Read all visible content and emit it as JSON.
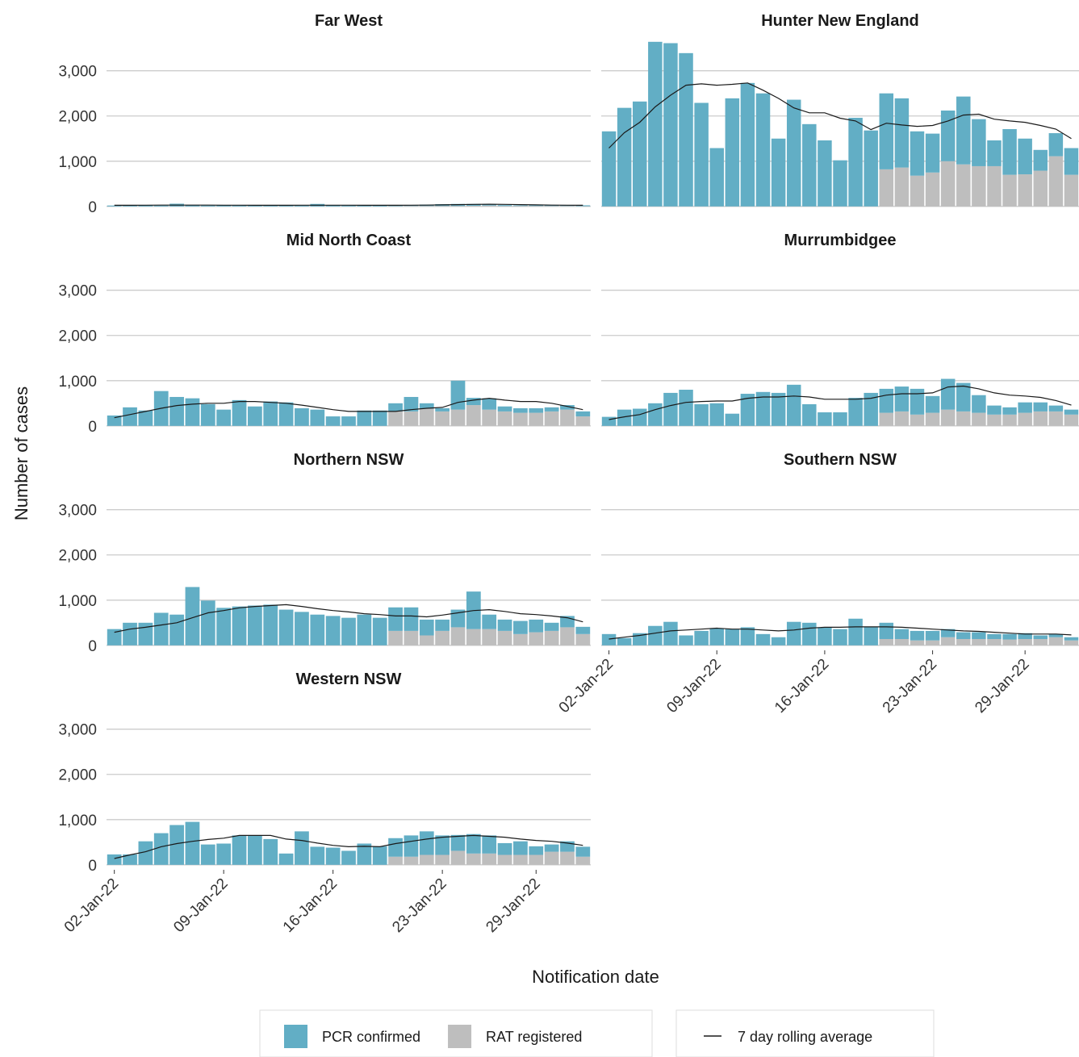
{
  "chart_data": {
    "type": "bar",
    "stacked": true,
    "y_label": "Number of cases",
    "x_label": "Notification date",
    "categories": [
      "02-Jan-22",
      null,
      null,
      null,
      null,
      null,
      null,
      "09-Jan-22",
      null,
      null,
      null,
      null,
      null,
      null,
      "16-Jan-22",
      null,
      null,
      null,
      null,
      null,
      null,
      "23-Jan-22",
      null,
      null,
      null,
      null,
      null,
      "29-Jan-22",
      null,
      null,
      null
    ],
    "ylim": [
      -110,
      3280
    ],
    "yticks": [
      0,
      {
        "value": 1000,
        "label": "1,000"
      },
      {
        "value": 2000,
        "label": "2,000"
      },
      {
        "value": 3000,
        "label": "3,000"
      }
    ],
    "grid": true,
    "series": [
      {
        "name": "PCR confirmed",
        "color": "#62aec5"
      },
      {
        "name": "RAT registered",
        "color": "#bebebe"
      },
      {
        "name": "7 day rolling average",
        "color": "#1a1a1a",
        "type": "line"
      }
    ],
    "panels": [
      {
        "title": "Far West",
        "values": [
          [
            20,
            25,
            30,
            20,
            60,
            30,
            20,
            25,
            20,
            20,
            25,
            30,
            20,
            55,
            25,
            20,
            20,
            25,
            20,
            20,
            30,
            40,
            45,
            40,
            30,
            20,
            15,
            15,
            20,
            15,
            20
          ],
          [
            0,
            0,
            0,
            0,
            0,
            0,
            0,
            0,
            0,
            0,
            0,
            0,
            0,
            0,
            0,
            0,
            0,
            0,
            5,
            10,
            10,
            10,
            10,
            15,
            20,
            10,
            10,
            10,
            10,
            10,
            5
          ],
          [
            25,
            25,
            28,
            30,
            30,
            30,
            30,
            28,
            28,
            25,
            25,
            25,
            28,
            28,
            28,
            28,
            25,
            25,
            25,
            28,
            30,
            35,
            40,
            45,
            48,
            45,
            40,
            35,
            30,
            28,
            25
          ]
        ]
      },
      {
        "title": "Hunter New England",
        "values": [
          [
            1660,
            2180,
            2320,
            3640,
            3610,
            3390,
            2290,
            1290,
            2390,
            2730,
            2500,
            1500,
            2360,
            1820,
            1460,
            1020,
            1960,
            1680,
            1680,
            1530,
            980,
            860,
            1120,
            1500,
            1040,
            570,
            1010,
            790,
            460,
            510,
            590
          ],
          [
            0,
            0,
            0,
            0,
            0,
            0,
            0,
            0,
            0,
            0,
            0,
            0,
            0,
            0,
            0,
            0,
            0,
            0,
            820,
            860,
            680,
            750,
            1000,
            930,
            890,
            890,
            700,
            710,
            790,
            1110,
            700
          ],
          [
            1290,
            1630,
            1860,
            2200,
            2460,
            2680,
            2710,
            2680,
            2700,
            2730,
            2570,
            2390,
            2180,
            2070,
            2070,
            1950,
            1890,
            1700,
            1840,
            1800,
            1770,
            1790,
            1890,
            2020,
            2040,
            1930,
            1890,
            1860,
            1790,
            1710,
            1500
          ]
        ]
      },
      {
        "title": "Mid North Coast",
        "values": [
          [
            230,
            410,
            340,
            770,
            640,
            610,
            480,
            360,
            570,
            430,
            540,
            520,
            390,
            360,
            210,
            210,
            340,
            340,
            180,
            320,
            120,
            70,
            640,
            160,
            250,
            110,
            100,
            100,
            90,
            100,
            110
          ],
          [
            0,
            0,
            0,
            0,
            0,
            0,
            0,
            0,
            0,
            0,
            0,
            0,
            0,
            0,
            0,
            0,
            0,
            0,
            320,
            320,
            380,
            320,
            360,
            460,
            360,
            320,
            290,
            290,
            320,
            360,
            210
          ],
          [
            180,
            250,
            320,
            390,
            450,
            480,
            500,
            500,
            540,
            540,
            520,
            500,
            460,
            410,
            360,
            320,
            320,
            320,
            320,
            360,
            390,
            410,
            520,
            570,
            610,
            570,
            540,
            540,
            500,
            430,
            360
          ]
        ]
      },
      {
        "title": "Murrumbidgee",
        "values": [
          [
            200,
            360,
            380,
            500,
            730,
            800,
            480,
            500,
            270,
            710,
            750,
            730,
            910,
            480,
            300,
            300,
            620,
            730,
            530,
            550,
            570,
            370,
            680,
            630,
            390,
            200,
            160,
            230,
            200,
            130,
            110
          ],
          [
            0,
            0,
            0,
            0,
            0,
            0,
            0,
            0,
            0,
            0,
            0,
            0,
            0,
            0,
            0,
            0,
            0,
            0,
            290,
            320,
            250,
            290,
            360,
            320,
            290,
            250,
            250,
            290,
            320,
            320,
            250
          ],
          [
            140,
            200,
            250,
            360,
            450,
            520,
            540,
            550,
            550,
            610,
            640,
            640,
            660,
            640,
            590,
            590,
            590,
            610,
            680,
            710,
            710,
            730,
            860,
            880,
            820,
            730,
            680,
            660,
            630,
            560,
            460
          ]
        ]
      },
      {
        "title": "Northern NSW",
        "values": [
          [
            360,
            500,
            500,
            720,
            680,
            1290,
            990,
            830,
            860,
            880,
            900,
            790,
            740,
            680,
            650,
            610,
            680,
            610,
            520,
            520,
            350,
            250,
            390,
            830,
            320,
            250,
            290,
            280,
            180,
            250,
            160
          ],
          [
            0,
            0,
            0,
            0,
            0,
            0,
            0,
            0,
            0,
            0,
            0,
            0,
            0,
            0,
            0,
            0,
            0,
            0,
            320,
            320,
            220,
            320,
            400,
            360,
            360,
            320,
            250,
            290,
            320,
            400,
            250
          ],
          [
            290,
            360,
            400,
            450,
            500,
            610,
            720,
            770,
            830,
            860,
            880,
            900,
            860,
            810,
            770,
            740,
            700,
            680,
            650,
            650,
            630,
            670,
            720,
            770,
            790,
            750,
            700,
            680,
            650,
            610,
            520
          ]
        ]
      },
      {
        "title": "Southern NSW",
        "values": [
          [
            250,
            160,
            270,
            430,
            520,
            220,
            320,
            380,
            360,
            400,
            250,
            180,
            520,
            500,
            400,
            360,
            590,
            400,
            360,
            220,
            210,
            210,
            180,
            150,
            150,
            110,
            120,
            130,
            80,
            70,
            70
          ],
          [
            0,
            0,
            0,
            0,
            0,
            0,
            0,
            0,
            0,
            0,
            0,
            0,
            0,
            0,
            0,
            0,
            0,
            0,
            140,
            140,
            110,
            110,
            180,
            140,
            140,
            140,
            130,
            140,
            140,
            180,
            110
          ],
          [
            140,
            180,
            220,
            270,
            320,
            340,
            360,
            380,
            360,
            360,
            340,
            320,
            340,
            380,
            400,
            400,
            410,
            410,
            410,
            400,
            380,
            360,
            340,
            320,
            310,
            290,
            270,
            250,
            250,
            250,
            230
          ]
        ]
      },
      {
        "title": "Western NSW",
        "values": [
          [
            230,
            230,
            520,
            700,
            880,
            950,
            450,
            470,
            650,
            650,
            570,
            250,
            740,
            400,
            380,
            310,
            470,
            410,
            410,
            470,
            520,
            430,
            350,
            430,
            400,
            260,
            300,
            190,
            160,
            230,
            220
          ],
          [
            0,
            0,
            0,
            0,
            0,
            0,
            0,
            0,
            0,
            0,
            0,
            0,
            0,
            0,
            0,
            0,
            0,
            0,
            180,
            180,
            220,
            220,
            310,
            250,
            250,
            220,
            220,
            220,
            290,
            290,
            180
          ],
          [
            140,
            220,
            290,
            400,
            470,
            520,
            560,
            590,
            650,
            650,
            650,
            570,
            540,
            480,
            430,
            400,
            410,
            400,
            470,
            520,
            570,
            610,
            630,
            650,
            630,
            610,
            570,
            540,
            520,
            480,
            430
          ]
        ]
      }
    ]
  }
}
